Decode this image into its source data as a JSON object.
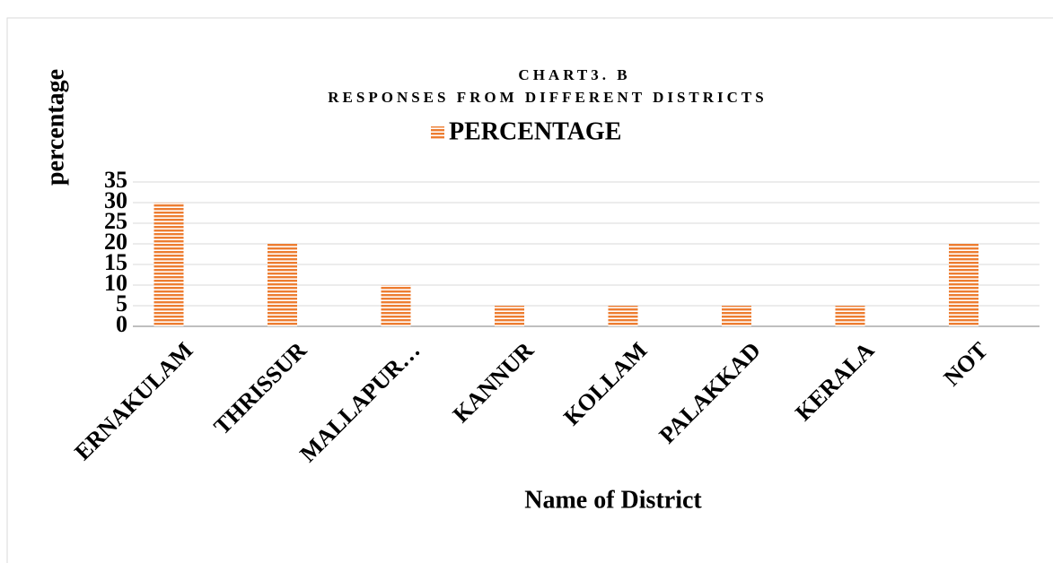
{
  "chart_data": {
    "type": "bar",
    "title": [
      "CHART3. B",
      "RESPONSES FROM DIFFERENT DISTRICTS"
    ],
    "legend": "PERCENTAGE",
    "y_label": "percentage",
    "x_label": "Name of District",
    "categories": [
      "ERNAKULAM",
      "THRISSUR",
      "MALLAPUR…",
      "KANNUR",
      "KOLLAM",
      "PALAKKAD",
      "KERALA",
      "NOT"
    ],
    "values": [
      30,
      20,
      10,
      5,
      5,
      5,
      5,
      20
    ],
    "color": "#ed7d31",
    "ylim": [
      0,
      35
    ],
    "yticks": [
      0,
      5,
      10,
      15,
      20,
      25,
      30,
      35
    ],
    "grid": true
  }
}
